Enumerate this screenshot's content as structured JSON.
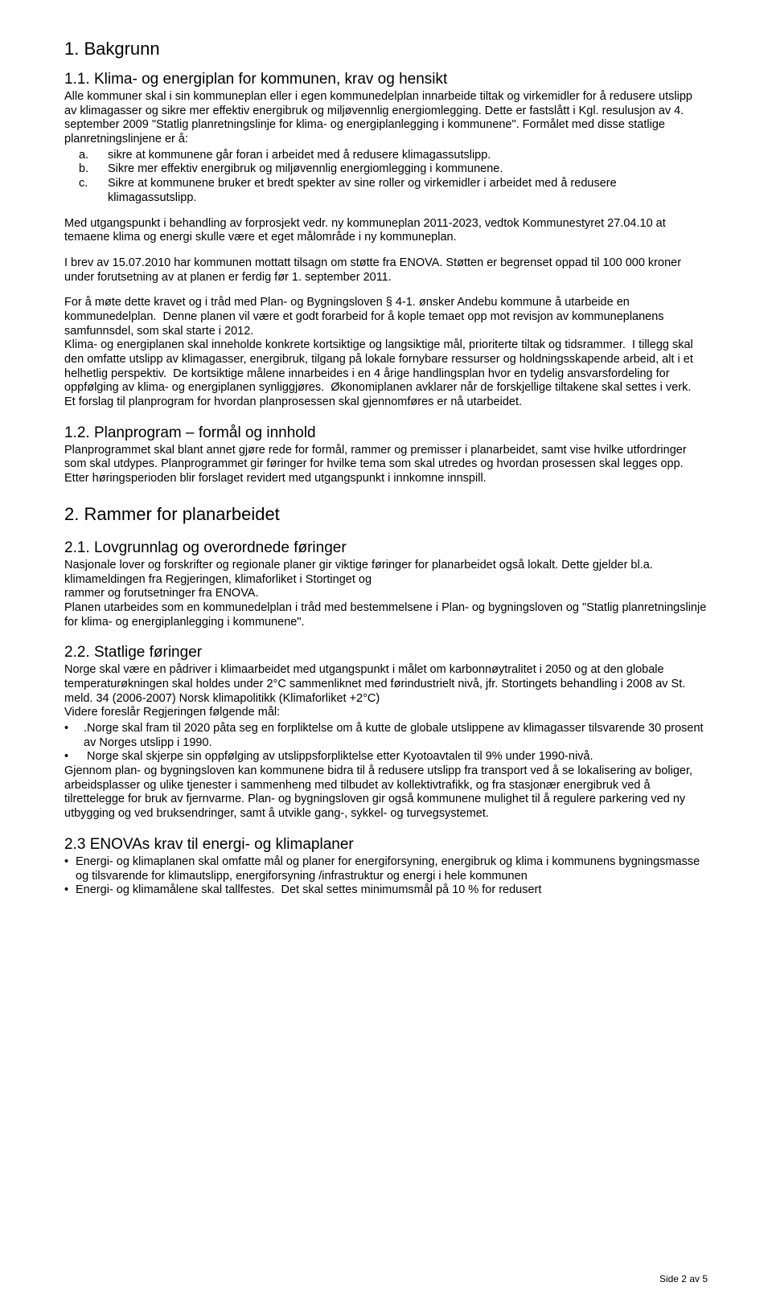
{
  "s1": {
    "title": "1. Bakgrunn",
    "s11_title": "1.1.   Klima- og energiplan for kommunen, krav og hensikt",
    "p1": "Alle kommuner skal i sin kommuneplan eller i egen kommunedelplan innarbeide tiltak og virkemidler for å redusere utslipp av klimagasser og sikre mer effektiv energibruk og miljøvennlig energiomlegging. Dette er fastslått i Kgl. resulusjon av 4. september 2009 \"Statlig planretningslinje for klima- og energiplanlegging i kommunene\". Formålet med disse statlige planretningslinjene er å:",
    "list": [
      {
        "m": "a.",
        "t": "sikre at kommunene går foran i arbeidet med å redusere klimagassutslipp."
      },
      {
        "m": "b.",
        "t": "Sikre mer effektiv energibruk og miljøvennlig energiomlegging i kommunene."
      },
      {
        "m": "c.",
        "t": "Sikre at kommunene bruker et bredt spekter av sine roller og virkemidler i arbeidet med å redusere klimagassutslipp."
      }
    ],
    "p2": "Med utgangspunkt i behandling av forprosjekt vedr. ny kommuneplan 2011-2023, vedtok Kommunestyret 27.04.10 at temaene klima og energi skulle være et eget målområde i ny kommuneplan.",
    "p3": "I brev av 15.07.2010 har kommunen mottatt tilsagn om støtte fra ENOVA. Støtten er begrenset oppad til 100 000 kroner under forutsetning av at planen er ferdig før 1. september 2011.",
    "p4": "For å møte dette kravet og i tråd med Plan- og Bygningsloven § 4-1. ønsker Andebu kommune å utarbeide en kommunedelplan.  Denne planen vil være et godt forarbeid for å kople temaet opp mot revisjon av kommuneplanens samfunnsdel, som skal starte i 2012.\nKlima- og energiplanen skal inneholde konkrete kortsiktige og langsiktige mål, prioriterte tiltak og tidsrammer.  I tillegg skal den omfatte utslipp av klimagasser, energibruk, tilgang på lokale fornybare ressurser og holdningsskapende arbeid, alt i et helhetlig perspektiv.  De kortsiktige målene innarbeides i en 4 årige handlingsplan hvor en tydelig ansvarsfordeling for oppfølging av klima- og energiplanen synliggjøres.  Økonomiplanen avklarer når de forskjellige tiltakene skal settes i verk.\nEt forslag til planprogram for hvordan planprosessen skal gjennomføres er nå utarbeidet.",
    "s12_title": "1.2. Planprogram – formål og innhold",
    "p5": "Planprogrammet skal blant annet gjøre rede for formål, rammer og premisser i planarbeidet, samt vise hvilke utfordringer som skal utdypes. Planprogrammet gir føringer for hvilke tema som skal utredes og hvordan prosessen skal legges opp.  Etter høringsperioden blir forslaget revidert med utgangspunkt i innkomne innspill."
  },
  "s2": {
    "title": "2. Rammer for planarbeidet",
    "s21_title": "2.1. Lovgrunnlag og overordnede føringer",
    "p1": "Nasjonale lover og forskrifter og regionale planer gir viktige føringer for planarbeidet også lokalt. Dette gjelder bl.a. klimameldingen fra Regjeringen, klimaforliket i Stortinget og\nrammer og forutsetninger fra ENOVA.\nPlanen utarbeides som en kommunedelplan i tråd med bestemmelsene i Plan- og bygningsloven og \"Statlig planretningslinje for klima- og energiplanlegging i kommunene\".",
    "s22_title": "2.2. Statlige føringer",
    "p2": "Norge skal være en pådriver i klimaarbeidet med utgangspunkt i målet om karbonnøytralitet i 2050 og at den globale temperaturøkningen skal holdes under 2°C sammenliknet med førindustrielt nivå, jfr. Stortingets behandling i 2008 av St. meld. 34 (2006-2007) Norsk klimapolitikk (Klimaforliket +2°C)\nVidere foreslår Regjeringen følgende mål:",
    "bullets": [
      ".Norge skal fram til 2020 påta seg en forpliktelse om å kutte de globale utslippene av klimagasser tilsvarende 30 prosent av Norges utslipp i 1990.",
      " Norge skal skjerpe sin oppfølging av utslippsforpliktelse etter Kyotoavtalen til 9% under 1990-nivå."
    ],
    "p3": "Gjennom plan- og bygningsloven kan kommunene bidra til å redusere utslipp fra transport ved å se lokalisering av boliger, arbeidsplasser og ulike tjenester i sammenheng med tilbudet av kollektivtrafikk, og fra stasjonær energibruk ved å tilrettelegge for bruk av fjernvarme. Plan- og bygningsloven gir også kommunene mulighet til å regulere parkering ved ny utbygging og ved bruksendringer, samt å utvikle gang-, sykkel- og turvegsystemet.",
    "s23_title": "2.3 ENOVAs krav til energi- og klimaplaner",
    "dot_bullets": [
      "Energi- og klimaplanen skal omfatte mål og planer for energiforsyning, energibruk og klima i kommunens bygningsmasse og tilsvarende for klimautslipp, energiforsyning /infrastruktur og energi i hele kommunen",
      "Energi- og klimamålene skal tallfestes.  Det skal settes minimumsmål på 10 % for redusert"
    ]
  },
  "footer": "Side 2 av 5"
}
